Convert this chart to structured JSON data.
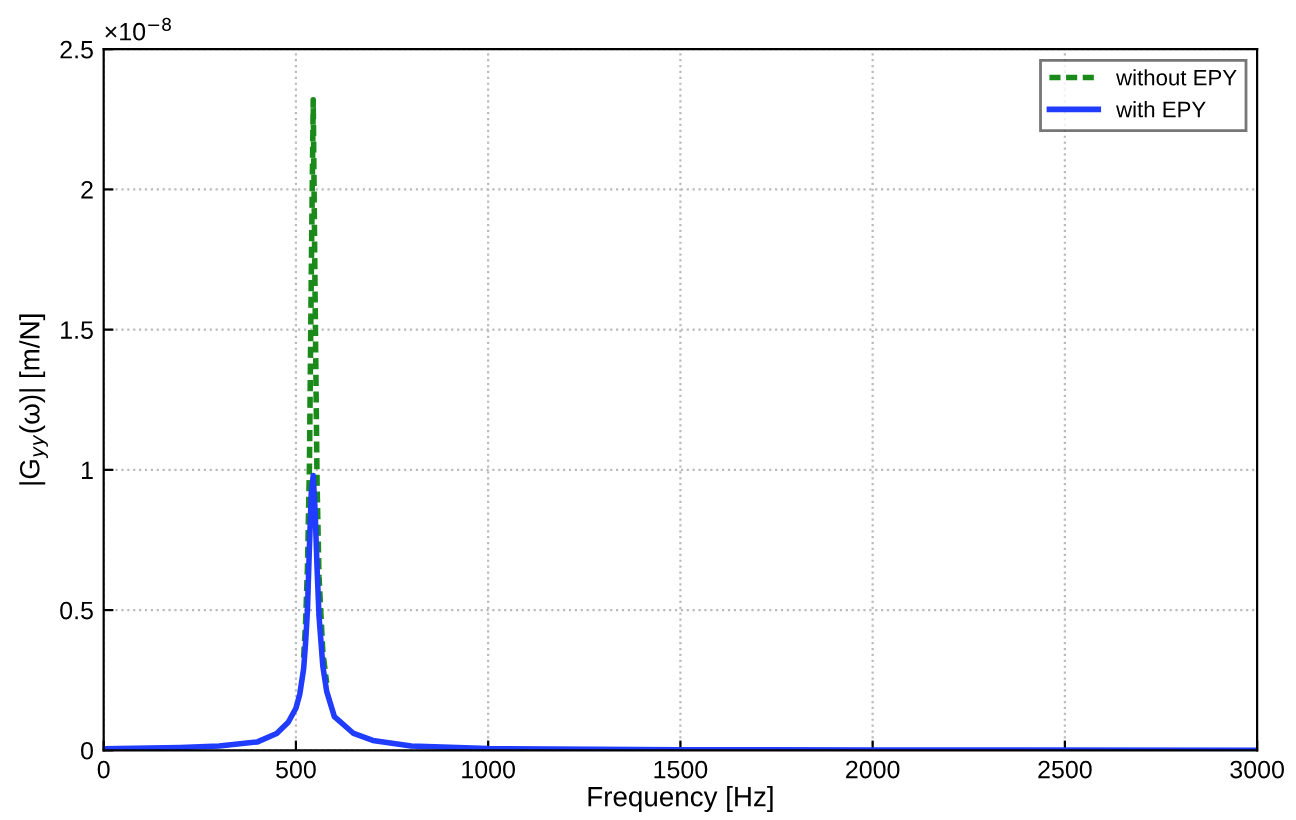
{
  "chart_data": {
    "type": "line",
    "xlabel": "Frequency [Hz]",
    "ylabel": "|G$_{yy}$(ω)| [m/N]",
    "annotations": [
      "×10$^{−8}$"
    ],
    "xlim": [
      0,
      3000
    ],
    "xticks": [
      0,
      500,
      1000,
      1500,
      2000,
      2500,
      3000
    ],
    "ylim": [
      0,
      2.5
    ],
    "yticks": [
      0,
      0.5,
      1,
      1.5,
      2,
      2.5
    ],
    "grid": true,
    "legend": "top right",
    "series": [
      {
        "name": "without EPY",
        "color": "#1a8a1a",
        "line_style": "dashed",
        "x": [
          520,
          525,
          530,
          535,
          540,
          545,
          550,
          555,
          560,
          570,
          580
        ],
        "values": [
          0.33,
          0.45,
          0.65,
          1.0,
          1.7,
          2.32,
          1.6,
          0.95,
          0.62,
          0.35,
          0.24
        ]
      },
      {
        "name": "with EPY",
        "color": "#1f3cff",
        "line_style": "solid",
        "x": [
          0,
          200,
          300,
          400,
          450,
          480,
          500,
          510,
          520,
          525,
          530,
          535,
          540,
          545,
          550,
          555,
          560,
          570,
          580,
          600,
          650,
          700,
          800,
          1000,
          1500,
          2000,
          3000
        ],
        "values": [
          0.005,
          0.01,
          0.015,
          0.03,
          0.06,
          0.1,
          0.15,
          0.2,
          0.29,
          0.38,
          0.5,
          0.72,
          0.92,
          0.98,
          0.85,
          0.65,
          0.48,
          0.3,
          0.21,
          0.12,
          0.06,
          0.035,
          0.015,
          0.006,
          0.002,
          0.001,
          0
        ]
      }
    ]
  }
}
